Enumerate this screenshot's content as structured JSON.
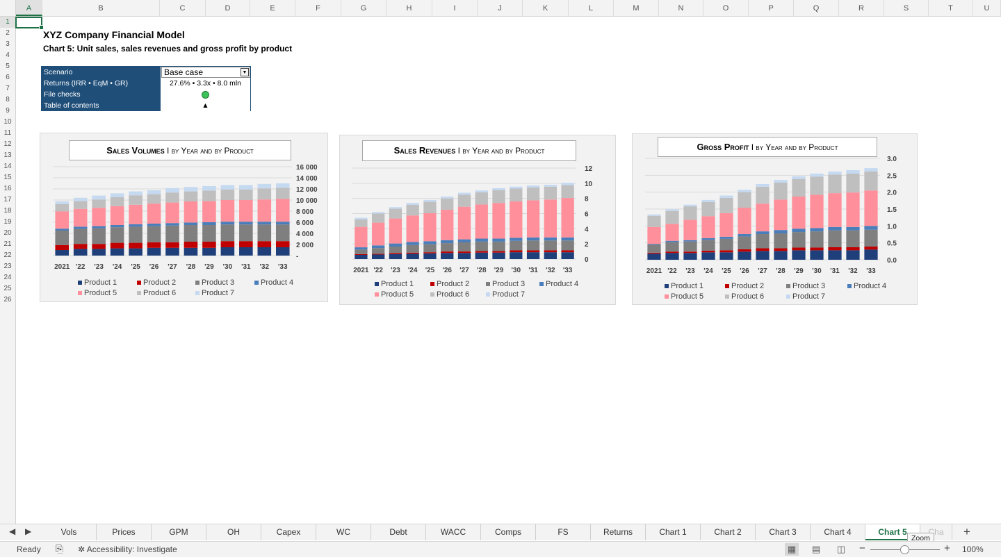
{
  "columns": [
    "A",
    "B",
    "C",
    "D",
    "E",
    "F",
    "G",
    "H",
    "I",
    "J",
    "K",
    "L",
    "M",
    "N",
    "O",
    "P",
    "Q",
    "R",
    "S",
    "T",
    "U"
  ],
  "rows": [
    "1",
    "2",
    "3",
    "4",
    "5",
    "6",
    "7",
    "8",
    "9",
    "10",
    "11",
    "12",
    "13",
    "14",
    "15",
    "16",
    "17",
    "18",
    "19",
    "20",
    "21",
    "22",
    "23",
    "24",
    "25",
    "26"
  ],
  "sheet": {
    "title": "XYZ Company Financial Model",
    "subtitle": "Chart 5: Unit sales, sales revenues and gross profit by product"
  },
  "controls": {
    "scenario_label": "Scenario",
    "scenario_value": "Base case",
    "returns_label": "Returns (IRR • EqM • GR)",
    "returns_value": "27.6% • 3.3x • 8.0 mln",
    "file_checks_label": "File checks",
    "toc_label": "Table of contents",
    "toc_icon": "▲",
    "file_check_color": "#3bc35a"
  },
  "chart_data": [
    {
      "type": "bar",
      "stacked": true,
      "title_main": "Sales Volumes",
      "title_rest": "I by Year and by Product",
      "categories": [
        "2021",
        "'22",
        "'23",
        "'24",
        "'25",
        "'26",
        "'27",
        "'28",
        "'29",
        "'30",
        "'31",
        "'32",
        "'33"
      ],
      "yticks": [
        "16 000",
        "14 000",
        "12 000",
        "10 000",
        "8 000",
        "6 000",
        "4 000",
        "2 000",
        "-"
      ],
      "ylim": [
        0,
        16000
      ],
      "legend_position": "bottom",
      "series": [
        {
          "name": "Product 1",
          "color": "#1f3f7a",
          "values": [
            1000,
            1200,
            1200,
            1300,
            1300,
            1400,
            1400,
            1400,
            1400,
            1500,
            1500,
            1500,
            1500
          ]
        },
        {
          "name": "Product 2",
          "color": "#c00000",
          "values": [
            900,
            900,
            900,
            1000,
            1000,
            1000,
            1000,
            1100,
            1100,
            1100,
            1100,
            1100,
            1100
          ]
        },
        {
          "name": "Product 3",
          "color": "#7f7f7f",
          "values": [
            2600,
            2700,
            2800,
            2800,
            2900,
            2900,
            3000,
            3000,
            3000,
            3000,
            3000,
            3000,
            3000
          ]
        },
        {
          "name": "Product 4",
          "color": "#4a7ebb",
          "values": [
            350,
            400,
            400,
            400,
            450,
            450,
            450,
            450,
            500,
            500,
            500,
            500,
            500
          ]
        },
        {
          "name": "Product 5",
          "color": "#ff8f9a",
          "values": [
            3100,
            3200,
            3300,
            3400,
            3500,
            3600,
            3700,
            3800,
            3800,
            3900,
            3900,
            4000,
            4100
          ]
        },
        {
          "name": "Product 6",
          "color": "#bfbfbf",
          "values": [
            1300,
            1400,
            1500,
            1600,
            1700,
            1700,
            1800,
            1800,
            1900,
            1900,
            1900,
            2000,
            2000
          ]
        },
        {
          "name": "Product 7",
          "color": "#c5d9f1",
          "values": [
            500,
            600,
            700,
            700,
            700,
            700,
            800,
            800,
            800,
            800,
            800,
            800,
            800
          ]
        }
      ]
    },
    {
      "type": "bar",
      "stacked": true,
      "title_main": "Sales Revenues",
      "title_rest": "I by Year and by Product",
      "categories": [
        "2021",
        "'22",
        "'23",
        "'24",
        "'25",
        "'26",
        "'27",
        "'28",
        "'29",
        "'30",
        "'31",
        "'32",
        "'33"
      ],
      "yticks": [
        "12",
        "10",
        "8",
        "6",
        "4",
        "2",
        "0"
      ],
      "ylim": [
        0,
        12
      ],
      "legend_position": "bottom",
      "series": [
        {
          "name": "Product 1",
          "color": "#1f3f7a",
          "values": [
            0.55,
            0.6,
            0.65,
            0.7,
            0.75,
            0.8,
            0.8,
            0.85,
            0.85,
            0.9,
            0.9,
            0.9,
            0.9
          ]
        },
        {
          "name": "Product 2",
          "color": "#c00000",
          "values": [
            0.1,
            0.1,
            0.15,
            0.15,
            0.15,
            0.2,
            0.2,
            0.2,
            0.2,
            0.25,
            0.25,
            0.25,
            0.25
          ]
        },
        {
          "name": "Product 3",
          "color": "#7f7f7f",
          "values": [
            0.6,
            0.75,
            0.85,
            1.0,
            1.05,
            1.1,
            1.2,
            1.25,
            1.25,
            1.25,
            1.3,
            1.3,
            1.3
          ]
        },
        {
          "name": "Product 4",
          "color": "#4a7ebb",
          "values": [
            0.3,
            0.35,
            0.4,
            0.4,
            0.4,
            0.4,
            0.4,
            0.4,
            0.4,
            0.4,
            0.4,
            0.4,
            0.4
          ]
        },
        {
          "name": "Product 5",
          "color": "#ff8f9a",
          "values": [
            2.7,
            3.0,
            3.3,
            3.5,
            3.7,
            4.0,
            4.3,
            4.5,
            4.7,
            4.8,
            4.9,
            5.0,
            5.2
          ]
        },
        {
          "name": "Product 6",
          "color": "#bfbfbf",
          "values": [
            1.0,
            1.2,
            1.3,
            1.4,
            1.5,
            1.5,
            1.6,
            1.6,
            1.7,
            1.7,
            1.7,
            1.7,
            1.7
          ]
        },
        {
          "name": "Product 7",
          "color": "#c5d9f1",
          "values": [
            0.2,
            0.2,
            0.2,
            0.25,
            0.25,
            0.25,
            0.25,
            0.25,
            0.25,
            0.25,
            0.25,
            0.25,
            0.3
          ]
        }
      ]
    },
    {
      "type": "bar",
      "stacked": true,
      "title_main": "Gross Profit",
      "title_rest": "I by Year and by Product",
      "categories": [
        "2021",
        "'22",
        "'23",
        "'24",
        "'25",
        "'26",
        "'27",
        "'28",
        "'29",
        "'30",
        "'31",
        "'32",
        "'33"
      ],
      "yticks": [
        "3.0",
        "2.5",
        "2.0",
        "1.5",
        "1.0",
        "0.5",
        "0.0"
      ],
      "ylim": [
        0,
        3
      ],
      "legend_position": "bottom",
      "series": [
        {
          "name": "Product 1",
          "color": "#1f3f7a",
          "values": [
            0.18,
            0.2,
            0.2,
            0.22,
            0.22,
            0.24,
            0.26,
            0.26,
            0.28,
            0.28,
            0.28,
            0.28,
            0.3
          ]
        },
        {
          "name": "Product 2",
          "color": "#c00000",
          "values": [
            0.03,
            0.04,
            0.04,
            0.05,
            0.06,
            0.07,
            0.08,
            0.08,
            0.08,
            0.08,
            0.09,
            0.09,
            0.09
          ]
        },
        {
          "name": "Product 3",
          "color": "#7f7f7f",
          "values": [
            0.24,
            0.28,
            0.3,
            0.32,
            0.34,
            0.38,
            0.42,
            0.44,
            0.46,
            0.48,
            0.5,
            0.5,
            0.5
          ]
        },
        {
          "name": "Product 4",
          "color": "#4a7ebb",
          "values": [
            0.02,
            0.04,
            0.04,
            0.05,
            0.06,
            0.07,
            0.08,
            0.1,
            0.1,
            0.1,
            0.1,
            0.1,
            0.11
          ]
        },
        {
          "name": "Product 5",
          "color": "#ff8f9a",
          "values": [
            0.5,
            0.5,
            0.6,
            0.65,
            0.7,
            0.78,
            0.82,
            0.9,
            0.95,
            0.98,
            1.0,
            1.02,
            1.05
          ]
        },
        {
          "name": "Product 6",
          "color": "#bfbfbf",
          "values": [
            0.33,
            0.38,
            0.4,
            0.42,
            0.45,
            0.46,
            0.5,
            0.5,
            0.52,
            0.54,
            0.55,
            0.56,
            0.56
          ]
        },
        {
          "name": "Product 7",
          "color": "#c5d9f1",
          "values": [
            0.04,
            0.05,
            0.05,
            0.06,
            0.07,
            0.07,
            0.08,
            0.08,
            0.08,
            0.09,
            0.09,
            0.1,
            0.1
          ]
        }
      ]
    }
  ],
  "tabs": [
    "Vols",
    "Prices",
    "GPM",
    "OH",
    "Capex",
    "WC",
    "Debt",
    "WACC",
    "Comps",
    "FS",
    "Returns",
    "Chart 1",
    "Chart 2",
    "Chart 3",
    "Chart 4",
    "Chart 5",
    "Cha"
  ],
  "active_tab": "Chart 5",
  "add_sheet_icon": "+",
  "tooltip": "Zoom",
  "status": {
    "ready": "Ready",
    "accessibility": "Accessibility: Investigate",
    "zoom": "100%",
    "zoom_minus": "−",
    "zoom_plus": "+"
  }
}
